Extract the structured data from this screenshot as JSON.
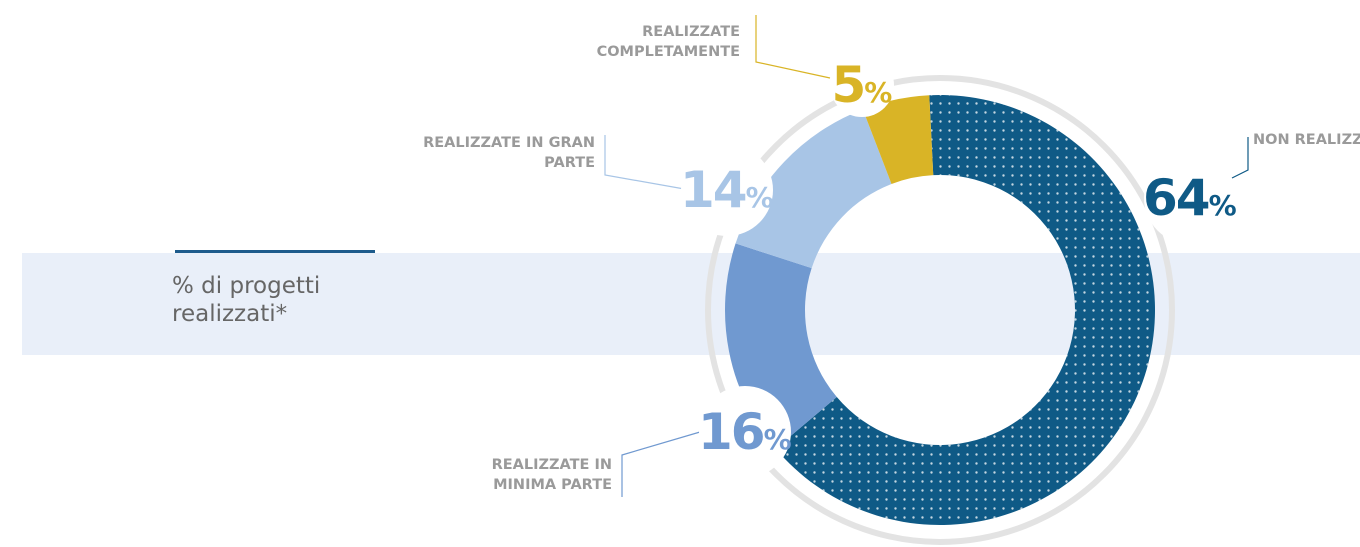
{
  "chart_data": {
    "type": "donut",
    "title": "% di progetti realizzati*",
    "categories": [
      "NON REALIZZATE",
      "REALIZZATE IN MINIMA PARTE",
      "REALIZZATE IN GRAN PARTE",
      "REALIZZATE COMPLETAMENTE"
    ],
    "values": [
      64,
      16,
      14,
      5
    ],
    "value_labels": [
      "64%",
      "16%",
      "14%",
      "5%"
    ],
    "colors": [
      "#0f5a86",
      "#7099d0",
      "#a8c5e6",
      "#d9b426"
    ]
  }
}
